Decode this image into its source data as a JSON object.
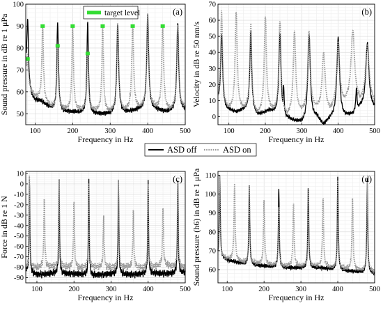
{
  "legend": {
    "entries": [
      {
        "label": "ASD off",
        "color": "#000000",
        "style": "solid"
      },
      {
        "label": "ASD on",
        "color": "#999999",
        "style": "dotted"
      }
    ]
  },
  "chart_data": [
    {
      "panel": "(a)",
      "type": "line",
      "xlabel": "Frequency in Hz",
      "ylabel": "Sound pressure in dB re 1 μPa",
      "xlim": [
        75,
        500
      ],
      "ylim": [
        45,
        100
      ],
      "xticks": [
        100,
        200,
        300,
        400,
        500
      ],
      "yticks": [
        50,
        60,
        70,
        80,
        90,
        100
      ],
      "grid": true,
      "legend": {
        "entries": [
          "target level"
        ],
        "placement": "top-center",
        "color": "#33dd33"
      },
      "base_off": [
        [
          75,
          75
        ],
        [
          80,
          62
        ],
        [
          90,
          58
        ],
        [
          100,
          56
        ],
        [
          115,
          56
        ],
        [
          130,
          54
        ],
        [
          150,
          52
        ],
        [
          170,
          51
        ],
        [
          200,
          51
        ],
        [
          250,
          50
        ],
        [
          300,
          50
        ],
        [
          350,
          51
        ],
        [
          400,
          53
        ],
        [
          450,
          51
        ],
        [
          500,
          52
        ]
      ],
      "base_on": [
        [
          75,
          76
        ],
        [
          80,
          63
        ],
        [
          90,
          60
        ],
        [
          100,
          58
        ],
        [
          115,
          57
        ],
        [
          130,
          55
        ],
        [
          150,
          53
        ],
        [
          170,
          52.5
        ],
        [
          200,
          52
        ],
        [
          250,
          52
        ],
        [
          300,
          51
        ],
        [
          350,
          52
        ],
        [
          400,
          54
        ],
        [
          450,
          52
        ],
        [
          500,
          53
        ]
      ],
      "peaks_off": [
        [
          80,
          94,
          2.5
        ],
        [
          160,
          92,
          2.5
        ],
        [
          240,
          92,
          2.5
        ],
        [
          320,
          91,
          3
        ],
        [
          400,
          95,
          3
        ],
        [
          480,
          91,
          3
        ]
      ],
      "peaks_on": [
        [
          80,
          76,
          2.5
        ],
        [
          120,
          90,
          2.5
        ],
        [
          160,
          81,
          2.5
        ],
        [
          200,
          90,
          2.5
        ],
        [
          240,
          78,
          2.5
        ],
        [
          280,
          90,
          2.5
        ],
        [
          320,
          91,
          3
        ],
        [
          360,
          90,
          3
        ],
        [
          400,
          96,
          3
        ],
        [
          440,
          90,
          3
        ],
        [
          480,
          91,
          3
        ]
      ],
      "target_level": [
        [
          80,
          75
        ],
        [
          120,
          90
        ],
        [
          160,
          81
        ],
        [
          200,
          90
        ],
        [
          240,
          77.5
        ],
        [
          280,
          90
        ],
        [
          360,
          90
        ],
        [
          440,
          90
        ]
      ]
    },
    {
      "panel": "(b)",
      "type": "line",
      "xlabel": "Frequency in Hz",
      "ylabel": "Velocity in dB re 50 nm/s",
      "xlim": [
        70,
        500
      ],
      "ylim": [
        -5,
        70
      ],
      "xticks": [
        100,
        200,
        300,
        400,
        500
      ],
      "yticks": [
        0,
        10,
        20,
        30,
        40,
        50,
        60,
        70
      ],
      "grid": true,
      "base_off": [
        [
          70,
          10
        ],
        [
          90,
          5
        ],
        [
          120,
          3
        ],
        [
          150,
          5
        ],
        [
          180,
          1
        ],
        [
          210,
          4
        ],
        [
          260,
          -1
        ],
        [
          300,
          -4
        ],
        [
          340,
          0
        ],
        [
          360,
          -5
        ],
        [
          380,
          -1
        ],
        [
          420,
          0
        ],
        [
          440,
          2
        ],
        [
          460,
          6
        ],
        [
          500,
          5
        ]
      ],
      "base_on": [
        [
          70,
          10
        ],
        [
          90,
          6
        ],
        [
          120,
          4
        ],
        [
          150,
          6
        ],
        [
          180,
          2
        ],
        [
          210,
          5
        ],
        [
          260,
          1
        ],
        [
          300,
          4
        ],
        [
          340,
          6
        ],
        [
          360,
          3
        ],
        [
          380,
          4
        ],
        [
          420,
          10
        ],
        [
          440,
          12
        ],
        [
          460,
          10
        ],
        [
          500,
          8
        ]
      ],
      "peaks_off": [
        [
          80,
          52,
          3
        ],
        [
          160,
          53,
          3
        ],
        [
          240,
          52,
          3.5
        ],
        [
          250,
          20,
          2
        ],
        [
          320,
          52,
          4
        ],
        [
          400,
          49,
          4.5
        ],
        [
          450,
          18,
          2
        ],
        [
          480,
          46,
          5
        ]
      ],
      "peaks_on": [
        [
          80,
          65,
          3
        ],
        [
          120,
          65,
          3.5
        ],
        [
          160,
          58,
          3
        ],
        [
          200,
          63,
          3.5
        ],
        [
          240,
          60,
          3.5
        ],
        [
          280,
          53,
          4
        ],
        [
          320,
          53,
          4
        ],
        [
          360,
          40,
          5
        ],
        [
          400,
          47,
          5
        ],
        [
          440,
          54,
          5.5
        ],
        [
          480,
          45,
          6
        ]
      ]
    },
    {
      "panel": "(c)",
      "type": "line",
      "xlabel": "Frequency in Hz",
      "ylabel": "Force in dB re 1 N",
      "xlim": [
        70,
        500
      ],
      "ylim": [
        -95,
        12
      ],
      "xticks": [
        100,
        200,
        300,
        400,
        500
      ],
      "yticks": [
        10,
        0,
        -10,
        -20,
        -30,
        -40,
        -50,
        -60,
        -70,
        -80,
        -90
      ],
      "grid": true,
      "base_off": [
        [
          70,
          -84
        ],
        [
          100,
          -87
        ],
        [
          140,
          -86
        ],
        [
          200,
          -86
        ],
        [
          250,
          -88
        ],
        [
          300,
          -86
        ],
        [
          350,
          -87
        ],
        [
          400,
          -86
        ],
        [
          450,
          -86
        ],
        [
          500,
          -85
        ]
      ],
      "base_on": [
        [
          70,
          -82
        ],
        [
          100,
          -80
        ],
        [
          140,
          -79
        ],
        [
          200,
          -80
        ],
        [
          250,
          -80
        ],
        [
          300,
          -80
        ],
        [
          350,
          -80
        ],
        [
          400,
          -80
        ],
        [
          450,
          -78
        ],
        [
          500,
          -80
        ]
      ],
      "peaks_off": [
        [
          80,
          8,
          1.2
        ],
        [
          160,
          9,
          1.2
        ],
        [
          240,
          6,
          1.2
        ],
        [
          320,
          5,
          1.2
        ],
        [
          400,
          2,
          1.2
        ],
        [
          480,
          8,
          1.2
        ]
      ],
      "peaks_on": [
        [
          80,
          6,
          1.2
        ],
        [
          120,
          -14,
          1.5
        ],
        [
          160,
          8,
          1.2
        ],
        [
          200,
          -14,
          1.5
        ],
        [
          240,
          4,
          1.2
        ],
        [
          280,
          -32,
          1.5
        ],
        [
          320,
          3,
          1.2
        ],
        [
          360,
          -25,
          1.5
        ],
        [
          400,
          1,
          1.2
        ],
        [
          440,
          -20,
          1.5
        ],
        [
          480,
          7,
          1.2
        ]
      ]
    },
    {
      "panel": "(d)",
      "type": "line",
      "xlabel": "Frequency in Hz",
      "ylabel": "Sound pressure (h6) in dB re 1 μPa",
      "xlim": [
        75,
        500
      ],
      "ylim": [
        53,
        112
      ],
      "xticks": [
        100,
        200,
        300,
        400,
        500
      ],
      "yticks": [
        60,
        70,
        80,
        90,
        100,
        110
      ],
      "grid": true,
      "base_off": [
        [
          75,
          67
        ],
        [
          100,
          65
        ],
        [
          150,
          63
        ],
        [
          200,
          62
        ],
        [
          250,
          61
        ],
        [
          300,
          61
        ],
        [
          350,
          61
        ],
        [
          400,
          60
        ],
        [
          450,
          59
        ],
        [
          500,
          58
        ]
      ],
      "base_on": [
        [
          75,
          67
        ],
        [
          100,
          66
        ],
        [
          150,
          64
        ],
        [
          200,
          63
        ],
        [
          250,
          62
        ],
        [
          300,
          62
        ],
        [
          350,
          62
        ],
        [
          400,
          61
        ],
        [
          450,
          60
        ],
        [
          500,
          59
        ]
      ],
      "peaks_off": [
        [
          80,
          111,
          1.5
        ],
        [
          160,
          105,
          1.5
        ],
        [
          240,
          103,
          1.5
        ],
        [
          320,
          105,
          1.5
        ],
        [
          400,
          109,
          1.5
        ],
        [
          480,
          108,
          1.5
        ]
      ],
      "peaks_on": [
        [
          80,
          109,
          1.5
        ],
        [
          120,
          105,
          1.8
        ],
        [
          160,
          104,
          1.5
        ],
        [
          200,
          97,
          1.8
        ],
        [
          240,
          94,
          1.5
        ],
        [
          280,
          95,
          1.8
        ],
        [
          320,
          104,
          1.5
        ],
        [
          360,
          98,
          1.8
        ],
        [
          400,
          108,
          1.5
        ],
        [
          440,
          99,
          1.8
        ],
        [
          480,
          107,
          1.5
        ]
      ]
    }
  ]
}
